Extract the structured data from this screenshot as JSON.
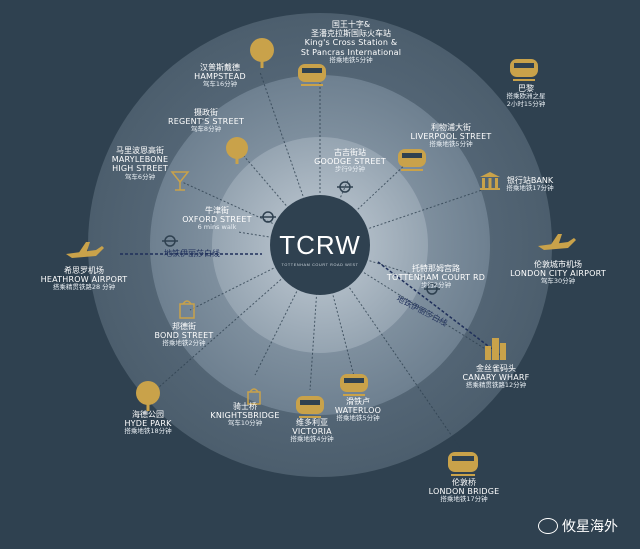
{
  "center": {
    "logo": "TCRW",
    "subtitle": "TOTTENHAM COURT ROAD WEST"
  },
  "lines": {
    "central_line": "地铁伊丽莎白线",
    "elizabeth_line": "地铁伊丽莎白线"
  },
  "places": [
    {
      "id": "kings-cross",
      "zh": "国王十字&",
      "zh2": "圣潘克拉斯国际火车站",
      "en": "King's Cross Station &",
      "en2": "St Pancras International",
      "tm": "搭乘地铁5分钟"
    },
    {
      "id": "hampstead",
      "zh": "汉普斯戴德",
      "en": "HAMPSTEAD",
      "tm": "驾车16分钟"
    },
    {
      "id": "paris",
      "zh": "巴黎",
      "en": "",
      "tm": "搭乘欧洲之星",
      "tm2": "2小时15分钟"
    },
    {
      "id": "regent-street",
      "zh": "摄政街",
      "en": "REGENT'S STREET",
      "tm": "驾车8分钟"
    },
    {
      "id": "liverpool-street",
      "zh": "利物浦大街",
      "en": "LIVERPOOL STREET",
      "tm": "搭乘地铁5分钟"
    },
    {
      "id": "goodge-street",
      "zh": "古吉街站",
      "en": "GOODGE STREET",
      "tm": "步行9分钟"
    },
    {
      "id": "marylebone",
      "zh": "马里波恩高街",
      "en": "MARYLEBONE",
      "en2": "HIGH STREET",
      "tm": "驾车6分钟"
    },
    {
      "id": "bank",
      "zh": "银行站BANK",
      "en": "",
      "tm": "搭乘地铁17分钟"
    },
    {
      "id": "oxford-street",
      "zh": "牛津街",
      "en": "OXFORD STREET",
      "tm": "6 mins walk"
    },
    {
      "id": "heathrow",
      "zh": "希思罗机场",
      "en": "HEATHROW AIRPORT",
      "tm": "搭乘精贯铁路28 分钟"
    },
    {
      "id": "london-city-airport",
      "zh": "伦敦城市机场",
      "en": "LONDON CITY AIRPORT",
      "tm": "驾车30分钟"
    },
    {
      "id": "tottenham-court-rd",
      "zh": "托特那姆宫路",
      "en": "TOTTENHAM COURT RD",
      "tm": "步行2分钟"
    },
    {
      "id": "bond-street",
      "zh": "邦德街",
      "en": "BOND STREET",
      "tm": "搭乘地铁2分钟"
    },
    {
      "id": "canary-wharf",
      "zh": "金丝雀码头",
      "en": "CANARY WHARF",
      "tm": "搭乘精贯铁路12分钟"
    },
    {
      "id": "knightsbridge",
      "zh": "骑士桥",
      "en": "KNIGHTSBRIDGE",
      "tm": "驾车10分钟"
    },
    {
      "id": "waterloo",
      "zh": "滑铁卢",
      "en": "WATERLOO",
      "tm": "搭乘地铁5分钟"
    },
    {
      "id": "victoria",
      "zh": "维多利亚",
      "en": "VICTORIA",
      "tm": "搭乘地铁4分钟"
    },
    {
      "id": "hyde-park",
      "zh": "海德公园",
      "en": "HYDE PARK",
      "tm": "搭乘地铁18分钟"
    },
    {
      "id": "london-bridge",
      "zh": "伦敦桥",
      "en": "LONDON BRIDGE",
      "tm": "搭乘地铁17分钟"
    }
  ],
  "watermark": {
    "text": "攸星海外"
  },
  "colors": {
    "background": "#2f4150",
    "ring_outer": "#4d5f6e",
    "ring_mid": "#6c7d8b",
    "ring_inner": "#95a4b1",
    "core": "#2f4150",
    "gold": "#c9a24a"
  }
}
